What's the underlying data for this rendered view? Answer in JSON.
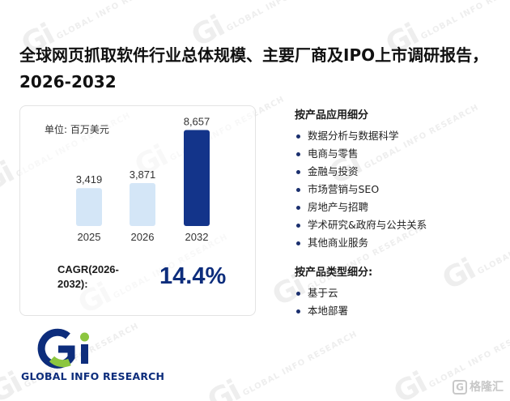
{
  "title": "全球网页抓取软件行业总体规模、主要厂商及IPO上市调研报告，2026-2032",
  "unit_label": "单位: 百万美元",
  "chart_data": {
    "type": "bar",
    "categories": [
      "2025",
      "2026",
      "2032"
    ],
    "values": [
      3419,
      3871,
      8657
    ],
    "value_labels": [
      "3,419",
      "3,871",
      "8,657"
    ],
    "ylim": [
      0,
      9000
    ],
    "colors": [
      "#d4e6f7",
      "#d4e6f7",
      "#13348a"
    ]
  },
  "cagr": {
    "label": "CAGR(2026-2032):",
    "value": "14.4%"
  },
  "by_application": {
    "title": "按产品应用细分",
    "items": [
      "数据分析与数据科学",
      "电商与零售",
      "金融与投资",
      "市场营销与SEO",
      "房地产与招聘",
      "学术研究&政府与公共关系",
      "其他商业服务"
    ]
  },
  "by_type": {
    "title": "按产品类型细分:",
    "items": [
      "基于云",
      "本地部署"
    ]
  },
  "logo": {
    "text": "GLOBAL INFO RESEARCH"
  },
  "watermark": {
    "text": "GLOBAL INFO RESEARCH",
    "mark": "Gi"
  },
  "corner_badge": {
    "mark": "G",
    "text": "格隆汇"
  },
  "colors": {
    "brand_navy": "#0d2d7c",
    "brand_green": "#8cc63f",
    "light_bar": "#d4e6f7"
  }
}
